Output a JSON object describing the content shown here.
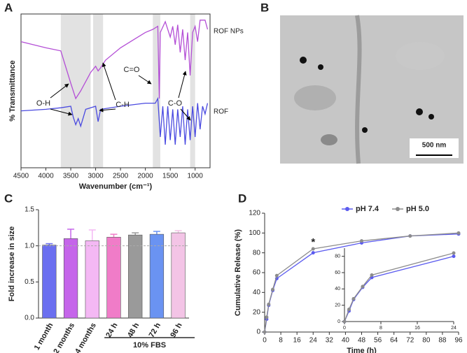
{
  "panel_labels": [
    "A",
    "B",
    "C",
    "D"
  ],
  "image": {
    "scale_bar": "500 nm"
  },
  "chart_data": [
    {
      "type": "line",
      "xlabel": "Wavenumber (cm⁻¹)",
      "ylabel": "% Transmittance",
      "xlim": [
        4500,
        700
      ],
      "xticks": [
        4500,
        4000,
        3500,
        3000,
        2500,
        2000,
        1500,
        1000
      ],
      "ylim": [
        0,
        100
      ],
      "bands": [
        [
          3700,
          3100
        ],
        [
          3050,
          2850
        ],
        [
          1850,
          1700
        ],
        [
          1100,
          1000
        ]
      ],
      "annotations": [
        "O-H",
        "C-H",
        "C=O",
        "C-O"
      ],
      "box": true,
      "series": [
        {
          "name": "ROF NPs",
          "color": "#b44fd6",
          "x": [
            4500,
            4000,
            3700,
            3500,
            3400,
            3300,
            3100,
            3000,
            2950,
            2900,
            2800,
            2500,
            2200,
            2000,
            1850,
            1750,
            1720,
            1700,
            1600,
            1500,
            1450,
            1400,
            1350,
            1300,
            1250,
            1200,
            1150,
            1100,
            1050,
            1000,
            950,
            900,
            800,
            750
          ],
          "values": [
            82,
            78,
            76,
            55,
            45,
            50,
            62,
            66,
            63,
            65,
            70,
            78,
            84,
            88,
            90,
            92,
            45,
            88,
            95,
            85,
            92,
            80,
            93,
            75,
            90,
            70,
            88,
            60,
            88,
            92,
            82,
            96,
            96,
            90
          ]
        },
        {
          "name": "ROF",
          "color": "#4a4ae0",
          "x": [
            4500,
            4000,
            3700,
            3500,
            3450,
            3400,
            3350,
            3300,
            3200,
            3000,
            2950,
            2900,
            2500,
            2000,
            1800,
            1750,
            1700,
            1650,
            1600,
            1550,
            1500,
            1450,
            1400,
            1350,
            1300,
            1250,
            1200,
            1150,
            1100,
            1050,
            1000,
            950,
            900,
            850,
            800,
            750
          ],
          "values": [
            37,
            38,
            39,
            40,
            33,
            28,
            32,
            27,
            38,
            40,
            30,
            38,
            40,
            42,
            42,
            45,
            20,
            40,
            15,
            40,
            18,
            38,
            15,
            38,
            20,
            40,
            15,
            38,
            18,
            40,
            20,
            42,
            25,
            40,
            35,
            42
          ]
        }
      ]
    },
    {
      "type": "bar",
      "ylabel": "Fold increase in size",
      "categories": [
        "1 month",
        "2 months",
        "4 months",
        "24 h",
        "48 h",
        "72 h",
        "96 h"
      ],
      "values": [
        1.01,
        1.1,
        1.07,
        1.12,
        1.15,
        1.16,
        1.18
      ],
      "errors": [
        0.02,
        0.13,
        0.15,
        0.04,
        0.03,
        0.04,
        0.03
      ],
      "colors": [
        "#6b6ff0",
        "#c565ea",
        "#f4b8f4",
        "#f07cc8",
        "#9a9a9a",
        "#6a93f2",
        "#f3c4e6"
      ],
      "ylim": [
        0,
        1.5
      ],
      "yticks": [
        {
          "value": 0,
          "label": "0.0"
        },
        0.5,
        {
          "value": 1,
          "label": "1.0"
        },
        1.5
      ],
      "reference_line": 1,
      "group_label": "10% FBS"
    },
    {
      "type": "line",
      "xlabel": "Time (h)",
      "ylabel": "Cumulative Release (%)",
      "xlim": [
        0,
        96
      ],
      "xticks": [
        0,
        8,
        16,
        24,
        32,
        40,
        48,
        56,
        64,
        72,
        80,
        88,
        96
      ],
      "ylim": [
        0,
        120
      ],
      "yticks": [
        0,
        20,
        40,
        60,
        80,
        100,
        120
      ],
      "legend": "top",
      "markers": true,
      "annotations": [
        {
          "text": "*",
          "x": 24
        }
      ],
      "series": [
        {
          "name": "pH 7.4",
          "color": "#5b5bef",
          "x": [
            0,
            1,
            2,
            4,
            6,
            24,
            48,
            72,
            96
          ],
          "values": [
            0,
            13,
            27,
            42,
            54,
            80,
            90,
            97,
            99
          ]
        },
        {
          "name": "pH 5.0",
          "color": "#8c8c8c",
          "x": [
            0,
            1,
            2,
            4,
            6,
            24,
            48,
            72,
            96
          ],
          "values": [
            0,
            15,
            28,
            43,
            57,
            84,
            92,
            97,
            100
          ]
        }
      ],
      "inset": {
        "xlim": [
          0,
          24
        ],
        "xticks": [
          0,
          8,
          16,
          24
        ],
        "ylim": [
          0,
          90
        ],
        "yticks": [
          0,
          20,
          40,
          60,
          80
        ]
      }
    }
  ]
}
